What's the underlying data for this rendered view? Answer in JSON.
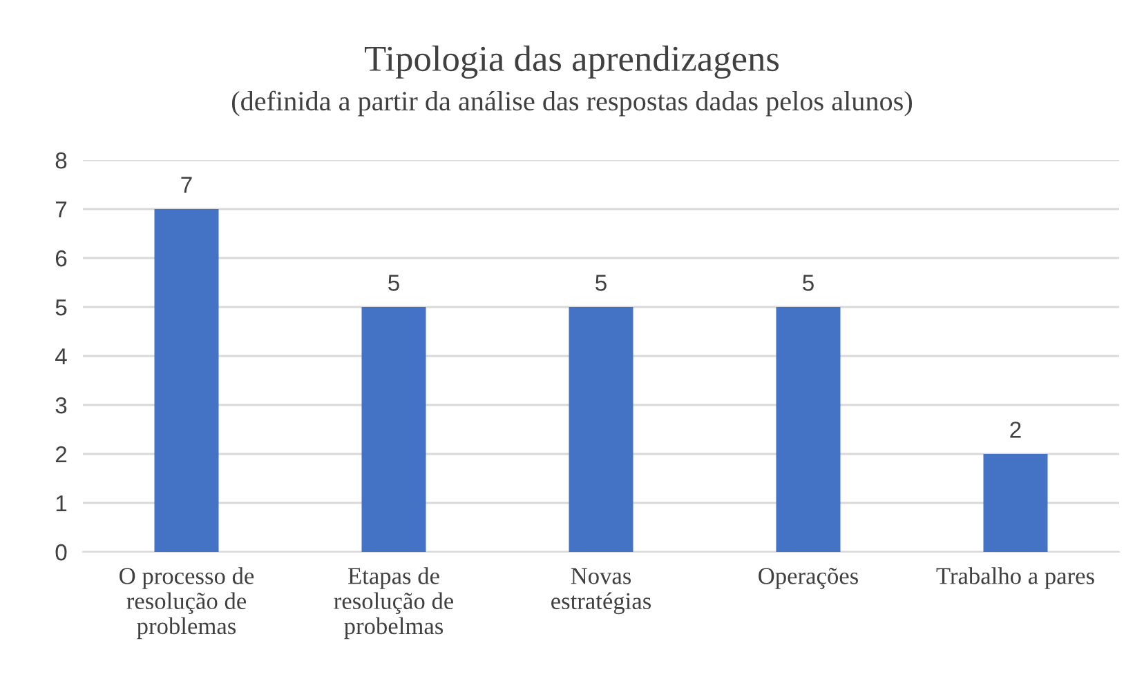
{
  "chart_data": {
    "type": "bar",
    "title": "Tipologia das aprendizagens",
    "subtitle": "(definida a partir da análise das respostas dadas pelos alunos)",
    "categories": [
      "O processo de\nresolução de\nproblemas",
      "Etapas de\nresolução de\nprobelmas",
      "Novas\nestratégias",
      "Operações",
      "Trabalho a pares"
    ],
    "values": [
      7,
      5,
      5,
      5,
      2
    ],
    "color": "#4472c4",
    "ylim": [
      0,
      8
    ],
    "yticks": [
      0,
      1,
      2,
      3,
      4,
      5,
      6,
      7,
      8
    ],
    "grid": "y",
    "data_labels": true
  }
}
